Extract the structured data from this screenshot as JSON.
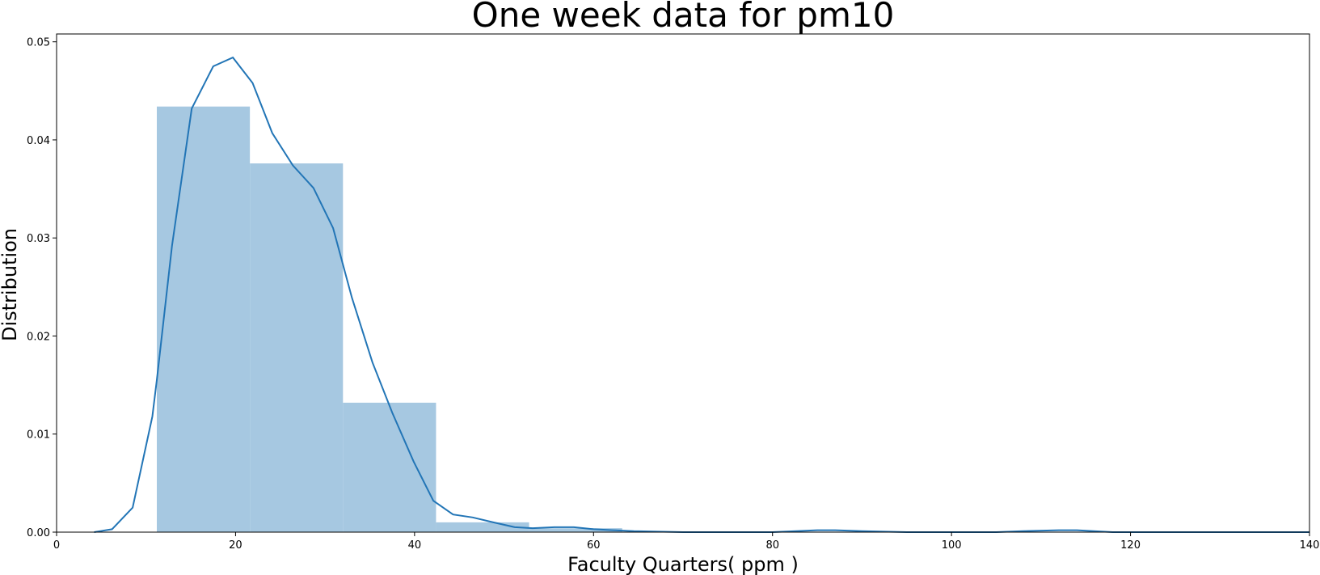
{
  "chart_data": {
    "type": "bar",
    "title": "One week data for pm10",
    "xlabel": "Faculty Quarters( ppm )",
    "ylabel": "Distribution",
    "xlim": [
      0,
      140
    ],
    "ylim": [
      0,
      0.0508
    ],
    "x_ticks": [
      0,
      20,
      40,
      60,
      80,
      100,
      120,
      140
    ],
    "x_tick_labels": [
      "0",
      "20",
      "40",
      "60",
      "80",
      "100",
      "120",
      "140"
    ],
    "y_ticks": [
      0,
      0.01,
      0.02,
      0.03,
      0.04,
      0.05
    ],
    "y_tick_labels": [
      "0.00",
      "0.01",
      "0.02",
      "0.03",
      "0.04",
      "0.05"
    ],
    "grid": false,
    "histogram": {
      "bins": [
        {
          "start": 11.2,
          "end": 21.6,
          "density": 0.0434
        },
        {
          "start": 21.6,
          "end": 32.0,
          "density": 0.0376
        },
        {
          "start": 32.0,
          "end": 42.4,
          "density": 0.0132
        },
        {
          "start": 42.4,
          "end": 52.8,
          "density": 0.001
        },
        {
          "start": 52.8,
          "end": 63.2,
          "density": 0.0004
        }
      ]
    },
    "kde": {
      "x": [
        4.2,
        6.2,
        8.5,
        10.7,
        11.2,
        12.9,
        15.1,
        17.5,
        19.7,
        21.9,
        24.1,
        26.4,
        28.7,
        30.9,
        33.0,
        35.3,
        37.5,
        39.9,
        42.1,
        44.3,
        46.5,
        48.8,
        51.2,
        53.2,
        55.6,
        57.8,
        60.0,
        62.2,
        64.5,
        70.0,
        80.0,
        85.0,
        87.0,
        90.0,
        95.0,
        100.0,
        105.0,
        108.0,
        112.0,
        114.0,
        118.0,
        125.0,
        140.0
      ],
      "y": [
        0.0,
        0.0003,
        0.0025,
        0.0118,
        0.0155,
        0.0292,
        0.0432,
        0.0475,
        0.0484,
        0.0458,
        0.0407,
        0.0374,
        0.0351,
        0.031,
        0.0239,
        0.0173,
        0.0122,
        0.0072,
        0.0032,
        0.0018,
        0.0015,
        0.001,
        0.0005,
        0.0004,
        0.0005,
        0.0005,
        0.0003,
        0.0002,
        0.0001,
        0.0,
        0.0,
        0.0002,
        0.0002,
        0.0001,
        0.0,
        0.0,
        0.0,
        0.0001,
        0.0002,
        0.0002,
        0.0,
        0.0,
        0.0
      ]
    },
    "colors": {
      "bar_fill": "#a6c8e1",
      "line": "#2275b6",
      "axes": "#000000"
    }
  }
}
